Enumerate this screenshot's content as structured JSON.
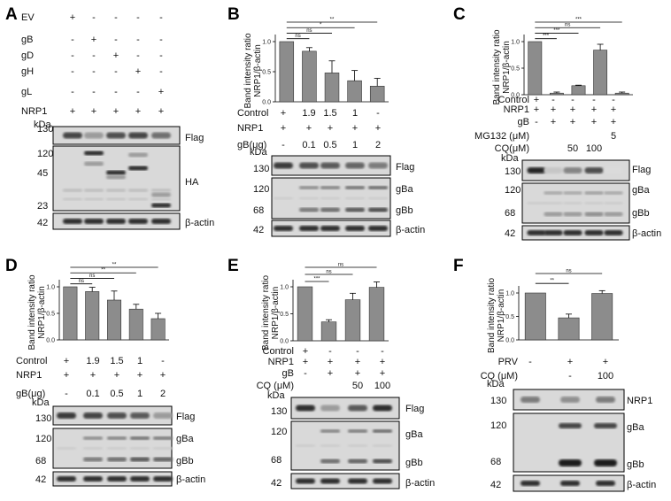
{
  "ylabel": "Band intensity ratio",
  "ylabel2": "NRP1/β-actin",
  "kda": "kDa",
  "panels": {
    "A": {
      "letter": "A",
      "rows": [
        {
          "label": "EV",
          "cells": [
            "+",
            "-",
            "-",
            "-",
            "-"
          ]
        },
        {
          "label": "gB",
          "cells": [
            "-",
            "+",
            "-",
            "-",
            "-"
          ]
        },
        {
          "label": "gD",
          "cells": [
            "-",
            "-",
            "+",
            "-",
            "-"
          ]
        },
        {
          "label": "gH",
          "cells": [
            "-",
            "-",
            "-",
            "+",
            "-"
          ]
        },
        {
          "label": "gL",
          "cells": [
            "-",
            "-",
            "-",
            "-",
            "+"
          ]
        },
        {
          "label": "NRP1",
          "cells": [
            "+",
            "+",
            "+",
            "+",
            "+"
          ]
        }
      ],
      "blot": {
        "markers": [
          "130",
          "120",
          "45",
          "23",
          "42"
        ],
        "labels": [
          "Flag",
          "HA",
          "β-actin"
        ]
      }
    },
    "B": {
      "letter": "B",
      "rows": [
        {
          "label": "Control",
          "cells": [
            "+",
            "1.9",
            "1.5",
            "1",
            "-"
          ]
        },
        {
          "label": "NRP1",
          "cells": [
            "+",
            "+",
            "+",
            "+",
            "+"
          ]
        },
        {
          "label": "gB(μg)",
          "cells": [
            "-",
            "0.1",
            "0.5",
            "1",
            "2"
          ]
        }
      ],
      "blot": {
        "markers": [
          "130",
          "120",
          "68",
          "42"
        ],
        "labels": [
          "Flag",
          "gBa",
          "gBb",
          "β-actin"
        ]
      }
    },
    "C": {
      "letter": "C",
      "rows": [
        {
          "label": "Control",
          "cells": [
            "+",
            "-",
            "-",
            "-",
            "-"
          ]
        },
        {
          "label": "NRP1",
          "cells": [
            "+",
            "+",
            "+",
            "+",
            "+"
          ]
        },
        {
          "label": "gB",
          "cells": [
            "-",
            "+",
            "+",
            "+",
            "+"
          ]
        },
        {
          "label": "MG132 (μM)",
          "cells": [
            "",
            "",
            "",
            "",
            "5"
          ]
        },
        {
          "label": "CQ(μM)",
          "cells": [
            "",
            "",
            "50",
            "100",
            ""
          ]
        }
      ],
      "blot": {
        "markers": [
          "130",
          "120",
          "68",
          "42"
        ],
        "labels": [
          "Flag",
          "gBa",
          "gBb",
          "β-actin"
        ]
      }
    },
    "D": {
      "letter": "D",
      "rows": [
        {
          "label": "Control",
          "cells": [
            "+",
            "1.9",
            "1.5",
            "1",
            "-"
          ]
        },
        {
          "label": "NRP1",
          "cells": [
            "+",
            "+",
            "+",
            "+",
            "+"
          ]
        },
        {
          "label": "gB(μg)",
          "cells": [
            "-",
            "0.1",
            "0.5",
            "1",
            "2"
          ]
        }
      ],
      "blot": {
        "markers": [
          "130",
          "120",
          "68",
          "42"
        ],
        "labels": [
          "Flag",
          "gBa",
          "gBb",
          "β-actin"
        ]
      }
    },
    "E": {
      "letter": "E",
      "rows": [
        {
          "label": "Control",
          "cells": [
            "+",
            "-",
            "-",
            "-"
          ]
        },
        {
          "label": "NRP1",
          "cells": [
            "+",
            "+",
            "+",
            "+"
          ]
        },
        {
          "label": "gB",
          "cells": [
            "-",
            "+",
            "+",
            "+"
          ]
        },
        {
          "label": "CQ (μM)",
          "cells": [
            "",
            "",
            "50",
            "100"
          ]
        }
      ],
      "blot": {
        "markers": [
          "130",
          "120",
          "68",
          "42"
        ],
        "labels": [
          "Flag",
          "gBa",
          "gBb",
          "β-actin"
        ]
      }
    },
    "F": {
      "letter": "F",
      "rows": [
        {
          "label": "PRV",
          "cells": [
            "-",
            "+",
            "+"
          ]
        },
        {
          "label": "CQ (μM)",
          "cells": [
            "",
            "-",
            "100"
          ]
        }
      ],
      "blot": {
        "markers": [
          "130",
          "120",
          "68",
          "42"
        ],
        "labels": [
          "NRP1",
          "gBa",
          "gBb",
          "β-actin"
        ]
      }
    }
  },
  "chart_data": [
    {
      "panel": "B",
      "type": "bar",
      "ylabel": "Band intensity ratio NRP1/β-actin",
      "ylim": [
        0,
        1.0
      ],
      "yticks": [
        "0.0",
        "0.5",
        "1.0"
      ],
      "values": [
        1.0,
        0.84,
        0.48,
        0.35,
        0.26
      ],
      "errors": [
        0,
        0.06,
        0.2,
        0.17,
        0.13
      ],
      "significance": [
        {
          "from": 0,
          "to": 1,
          "label": "ns"
        },
        {
          "from": 0,
          "to": 2,
          "label": "ns"
        },
        {
          "from": 0,
          "to": 3,
          "label": "*"
        },
        {
          "from": 0,
          "to": 4,
          "label": "**"
        }
      ]
    },
    {
      "panel": "C",
      "type": "bar",
      "ylabel": "Band intensity ratio NRP1/β-actin",
      "ylim": [
        0,
        1.0
      ],
      "yticks": [
        "0.0",
        "0.5",
        "1.0"
      ],
      "values": [
        1.0,
        0.03,
        0.17,
        0.84,
        0.03
      ],
      "errors": [
        0,
        0.02,
        0.01,
        0.11,
        0.02
      ],
      "significance": [
        {
          "from": 0,
          "to": 1,
          "label": "***"
        },
        {
          "from": 0,
          "to": 2,
          "label": "***"
        },
        {
          "from": 0,
          "to": 3,
          "label": "ns"
        },
        {
          "from": 0,
          "to": 4,
          "label": "***"
        }
      ]
    },
    {
      "panel": "D",
      "type": "bar",
      "ylabel": "Band intensity ratio NRP1/β-actin",
      "ylim": [
        0,
        1.0
      ],
      "yticks": [
        "0.0",
        "0.5",
        "1.0"
      ],
      "values": [
        1.0,
        0.91,
        0.75,
        0.58,
        0.4
      ],
      "errors": [
        0,
        0.08,
        0.17,
        0.09,
        0.1
      ],
      "significance": [
        {
          "from": 0,
          "to": 1,
          "label": "ns"
        },
        {
          "from": 0,
          "to": 2,
          "label": "ns"
        },
        {
          "from": 0,
          "to": 3,
          "label": "**"
        },
        {
          "from": 0,
          "to": 4,
          "label": "**"
        }
      ]
    },
    {
      "panel": "E",
      "type": "bar",
      "ylabel": "Band intensity ratio NRP1/β-actin",
      "ylim": [
        0,
        1.0
      ],
      "yticks": [
        "0.0",
        "0.5",
        "1.0"
      ],
      "values": [
        1.0,
        0.35,
        0.76,
        0.99
      ],
      "errors": [
        0,
        0.04,
        0.12,
        0.1
      ],
      "significance": [
        {
          "from": 0,
          "to": 1,
          "label": "***"
        },
        {
          "from": 0,
          "to": 2,
          "label": "ns"
        },
        {
          "from": 0,
          "to": 3,
          "label": "ns"
        }
      ]
    },
    {
      "panel": "F",
      "type": "bar",
      "ylabel": "Band intensity ratio NRP1/β-actin",
      "ylim": [
        0,
        1.0
      ],
      "yticks": [
        "0.0",
        "0.5",
        "1.0"
      ],
      "values": [
        1.0,
        0.47,
        0.99
      ],
      "errors": [
        0,
        0.08,
        0.06
      ],
      "significance": [
        {
          "from": 0,
          "to": 1,
          "label": "**"
        },
        {
          "from": 0,
          "to": 2,
          "label": "ns"
        }
      ]
    }
  ]
}
